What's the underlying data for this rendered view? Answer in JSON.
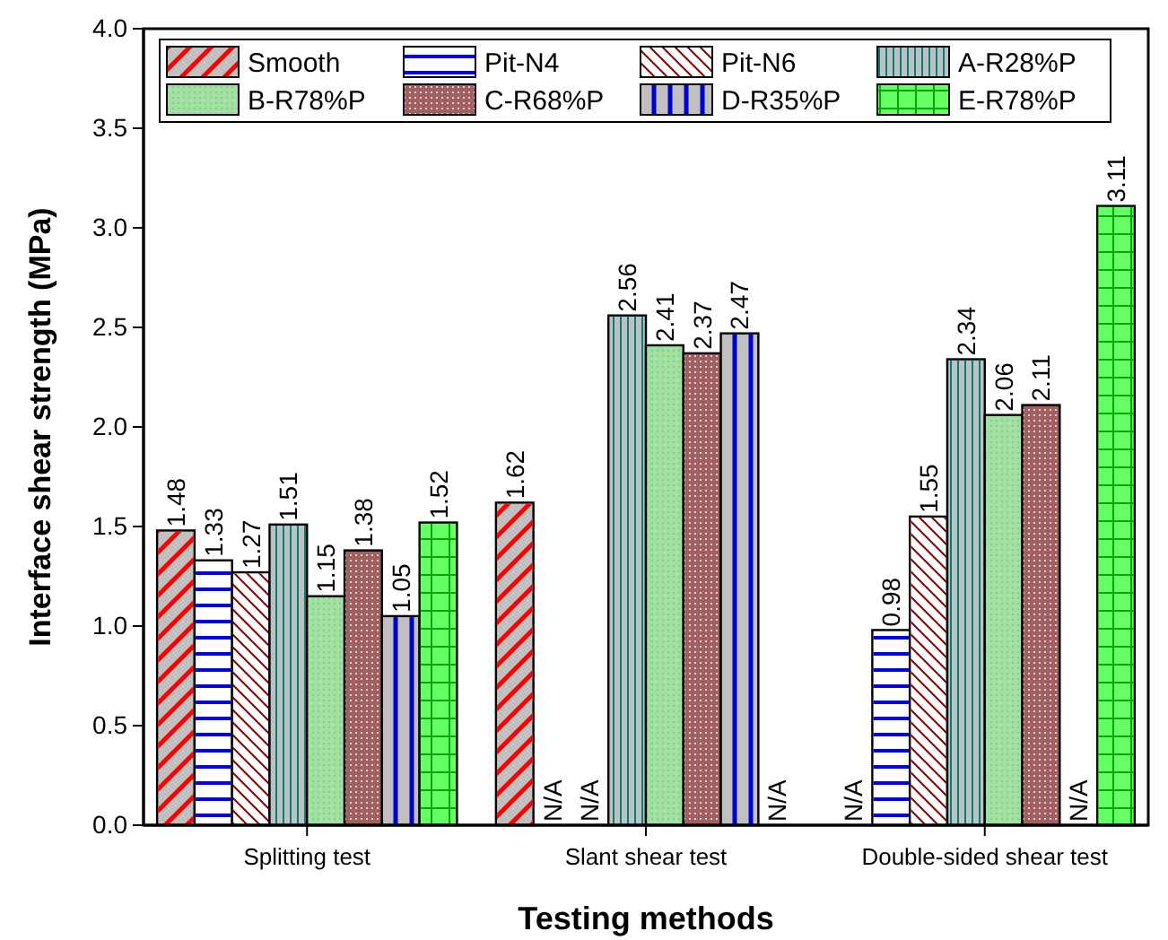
{
  "chart_data": {
    "type": "bar",
    "xlabel": "Testing methods",
    "ylabel": "Interface shear strength (MPa)",
    "categories": [
      "Splitting test",
      "Slant shear test",
      "Double-sided shear test"
    ],
    "ylim": [
      0,
      4.0
    ],
    "yticks": [
      {
        "value": 0,
        "label": "0.0"
      },
      {
        "value": 0.5,
        "label": "0.5"
      },
      {
        "value": 1,
        "label": "1.0"
      },
      {
        "value": 1.5,
        "label": "1.5"
      },
      {
        "value": 2,
        "label": "2.0"
      },
      {
        "value": 2.5,
        "label": "2.5"
      },
      {
        "value": 3,
        "label": "3.0"
      },
      {
        "value": 3.5,
        "label": "3.5"
      },
      {
        "value": 4,
        "label": "4.0"
      }
    ],
    "legend": "top",
    "grid": false,
    "series": [
      {
        "name": "Smooth",
        "color": "#c0c0c0",
        "values": [
          1.48,
          1.62,
          null
        ],
        "value_labels": [
          "1.48",
          "1.62",
          "N/A"
        ]
      },
      {
        "name": "Pit-N4",
        "color": "#ffffff",
        "values": [
          1.33,
          null,
          0.98
        ],
        "value_labels": [
          "1.33",
          "N/A",
          "0.98"
        ]
      },
      {
        "name": "Pit-N6",
        "color": "#ffffff",
        "values": [
          1.27,
          null,
          1.55
        ],
        "value_labels": [
          "1.27",
          "N/A",
          "1.55"
        ]
      },
      {
        "name": "A-R28%P",
        "color": "#c0c0c0",
        "values": [
          1.51,
          2.56,
          2.34
        ],
        "value_labels": [
          "1.51",
          "2.56",
          "2.34"
        ]
      },
      {
        "name": "B-R78%P",
        "color": "#a0e0a0",
        "values": [
          1.15,
          2.41,
          2.06
        ],
        "value_labels": [
          "1.15",
          "2.41",
          "2.06"
        ]
      },
      {
        "name": "C-R68%P",
        "color": "#a06060",
        "values": [
          1.38,
          2.37,
          2.11
        ],
        "value_labels": [
          "1.38",
          "2.37",
          "2.11"
        ]
      },
      {
        "name": "D-R35%P",
        "color": "#c0c0c0",
        "values": [
          1.05,
          2.47,
          null
        ],
        "value_labels": [
          "1.05",
          "2.47",
          "N/A"
        ]
      },
      {
        "name": "E-R78%P",
        "color": "#66ff66",
        "values": [
          1.52,
          null,
          3.11
        ],
        "value_labels": [
          "1.52",
          "N/A",
          "3.11"
        ]
      }
    ]
  }
}
